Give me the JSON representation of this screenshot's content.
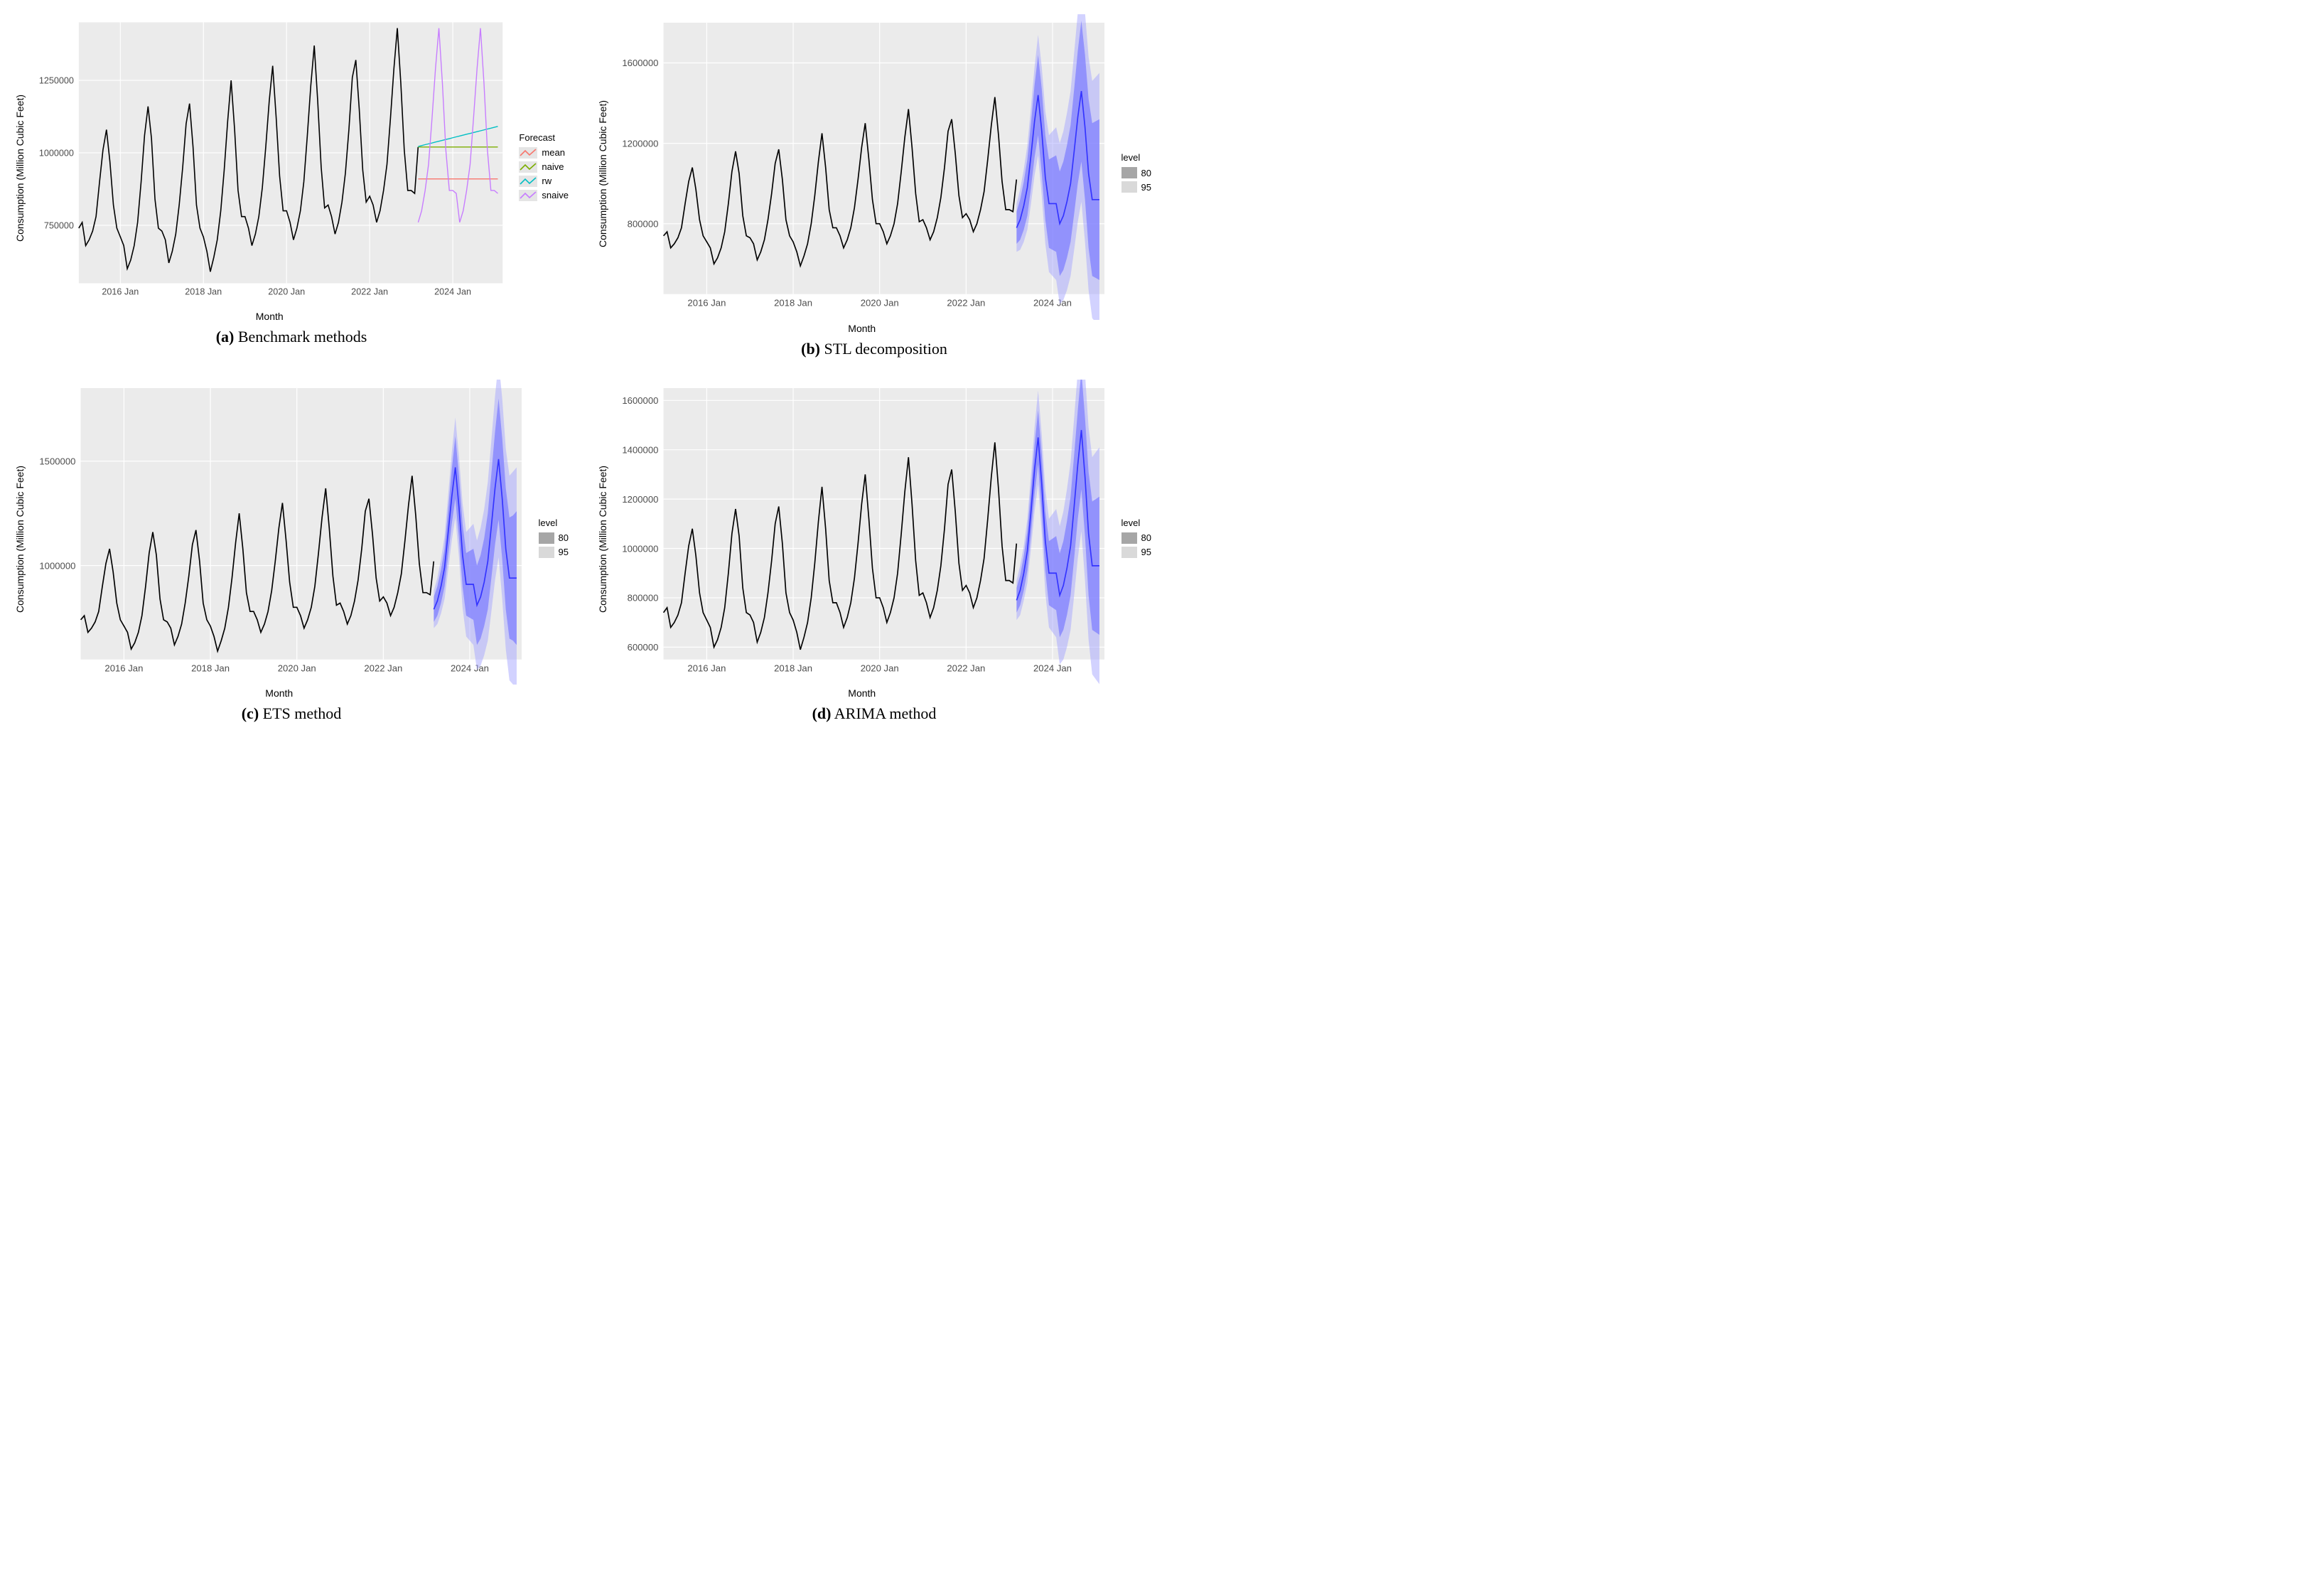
{
  "layout": {
    "rows": 2,
    "cols": 2
  },
  "shared": {
    "xlabel": "Month",
    "ylabel": "Consumption (Million Cubic Feet)",
    "panel_bg": "#ebebeb",
    "grid_color": "#ffffff",
    "grid_width": 1,
    "historical_color": "#000000",
    "historical_width": 1.4,
    "xlim": [
      2015.0,
      2025.2
    ],
    "xticks": [
      2016,
      2018,
      2020,
      2022,
      2024
    ],
    "xtick_labels": [
      "2016 Jan",
      "2018 Jan",
      "2020 Jan",
      "2022 Jan",
      "2024 Jan"
    ],
    "historical_y": [
      740000,
      760000,
      680000,
      700000,
      730000,
      780000,
      900000,
      1010000,
      1080000,
      970000,
      820000,
      740000,
      710000,
      680000,
      600000,
      630000,
      680000,
      760000,
      900000,
      1060000,
      1160000,
      1050000,
      840000,
      740000,
      730000,
      700000,
      620000,
      660000,
      720000,
      820000,
      950000,
      1100000,
      1170000,
      1020000,
      820000,
      740000,
      710000,
      660000,
      590000,
      640000,
      700000,
      800000,
      940000,
      1110000,
      1250000,
      1080000,
      870000,
      780000,
      780000,
      740000,
      680000,
      720000,
      780000,
      880000,
      1020000,
      1180000,
      1300000,
      1120000,
      920000,
      800000,
      800000,
      760000,
      700000,
      740000,
      800000,
      900000,
      1060000,
      1230000,
      1370000,
      1180000,
      950000,
      810000,
      820000,
      780000,
      720000,
      760000,
      830000,
      930000,
      1080000,
      1260000,
      1320000,
      1150000,
      940000,
      830000,
      850000,
      820000,
      760000,
      800000,
      870000,
      960000,
      1120000,
      1290000,
      1430000,
      1240000,
      1010000,
      870000,
      870000,
      860000,
      1020000
    ],
    "historical_x_start": 2015.0,
    "historical_step": 0.0833333
  },
  "panels": {
    "a": {
      "caption_tag": "(a)",
      "caption_text": "Benchmark methods",
      "ylim": [
        550000,
        1450000
      ],
      "yticks": [
        750000,
        1000000,
        1250000
      ],
      "legend": {
        "title": "Forecast",
        "type": "line",
        "items": [
          {
            "label": "mean",
            "color": "#f8766d"
          },
          {
            "label": "naive",
            "color": "#7cae00"
          },
          {
            "label": "rw",
            "color": "#00bfc4"
          },
          {
            "label": "snaive",
            "color": "#c77cff"
          }
        ]
      },
      "forecasts": {
        "x_start": 2023.167,
        "step": 0.0833333,
        "series": {
          "mean": {
            "color": "#f8766d",
            "y": [
              910000,
              910000,
              910000,
              910000,
              910000,
              910000,
              910000,
              910000,
              910000,
              910000,
              910000,
              910000,
              910000,
              910000,
              910000,
              910000,
              910000,
              910000,
              910000,
              910000,
              910000,
              910000,
              910000,
              910000
            ]
          },
          "naive": {
            "color": "#7cae00",
            "y": [
              1020000,
              1020000,
              1020000,
              1020000,
              1020000,
              1020000,
              1020000,
              1020000,
              1020000,
              1020000,
              1020000,
              1020000,
              1020000,
              1020000,
              1020000,
              1020000,
              1020000,
              1020000,
              1020000,
              1020000,
              1020000,
              1020000,
              1020000,
              1020000
            ]
          },
          "rw": {
            "color": "#00bfc4",
            "y": [
              1022000,
              1025000,
              1028000,
              1031000,
              1034000,
              1037000,
              1040000,
              1043000,
              1046000,
              1049000,
              1052000,
              1055000,
              1058000,
              1061000,
              1064000,
              1067000,
              1070000,
              1073000,
              1076000,
              1079000,
              1082000,
              1085000,
              1088000,
              1091000
            ]
          },
          "snaive": {
            "color": "#c77cff",
            "y": [
              760000,
              800000,
              870000,
              960000,
              1120000,
              1290000,
              1430000,
              1240000,
              1010000,
              870000,
              870000,
              860000,
              760000,
              800000,
              870000,
              960000,
              1120000,
              1290000,
              1430000,
              1240000,
              1010000,
              870000,
              870000,
              860000
            ]
          }
        }
      }
    },
    "b": {
      "caption_tag": "(b)",
      "caption_text": "STL decomposition",
      "ylim": [
        450000,
        1800000
      ],
      "yticks": [
        800000,
        1200000,
        1600000
      ],
      "legend": {
        "title": "level",
        "type": "fill",
        "items": [
          {
            "label": "80",
            "color": "#a6a6a6"
          },
          {
            "label": "95",
            "color": "#d9d9d9"
          }
        ]
      },
      "forecast_line": {
        "color": "#3333ff",
        "width": 1.4
      },
      "interval_colors": {
        "c80": "#7b7bffb3",
        "c95": "#a6a6ff80"
      },
      "forecast": {
        "x_start": 2023.167,
        "step": 0.0833333,
        "mean": [
          780000,
          820000,
          890000,
          980000,
          1140000,
          1310000,
          1440000,
          1260000,
          1030000,
          900000,
          900000,
          900000,
          800000,
          840000,
          910000,
          1000000,
          1160000,
          1330000,
          1460000,
          1280000,
          1050000,
          920000,
          920000,
          920000
        ],
        "lo80": [
          700000,
          720000,
          770000,
          840000,
          980000,
          1130000,
          1240000,
          1050000,
          820000,
          680000,
          670000,
          660000,
          540000,
          570000,
          630000,
          710000,
          850000,
          1000000,
          1110000,
          920000,
          680000,
          540000,
          530000,
          520000
        ],
        "hi80": [
          860000,
          920000,
          1010000,
          1120000,
          1300000,
          1490000,
          1640000,
          1470000,
          1240000,
          1120000,
          1130000,
          1140000,
          1060000,
          1110000,
          1190000,
          1290000,
          1470000,
          1660000,
          1810000,
          1640000,
          1420000,
          1300000,
          1310000,
          1320000
        ],
        "lo95": [
          660000,
          670000,
          710000,
          770000,
          900000,
          1040000,
          1140000,
          940000,
          700000,
          560000,
          540000,
          520000,
          400000,
          420000,
          470000,
          540000,
          670000,
          810000,
          910000,
          710000,
          470000,
          330000,
          310000,
          290000
        ],
        "hi95": [
          900000,
          970000,
          1070000,
          1190000,
          1380000,
          1580000,
          1740000,
          1580000,
          1360000,
          1240000,
          1260000,
          1280000,
          1200000,
          1260000,
          1350000,
          1460000,
          1650000,
          1850000,
          2010000,
          1850000,
          1630000,
          1510000,
          1530000,
          1550000
        ]
      }
    },
    "c": {
      "caption_tag": "(c)",
      "caption_text": "ETS method",
      "ylim": [
        550000,
        1850000
      ],
      "yticks": [
        1000000,
        1500000
      ],
      "legend": {
        "title": "level",
        "type": "fill",
        "items": [
          {
            "label": "80",
            "color": "#a6a6a6"
          },
          {
            "label": "95",
            "color": "#d9d9d9"
          }
        ]
      },
      "forecast_line": {
        "color": "#3333ff",
        "width": 1.4
      },
      "interval_colors": {
        "c80": "#7b7bffb3",
        "c95": "#a6a6ff80"
      },
      "forecast": {
        "x_start": 2023.167,
        "step": 0.0833333,
        "mean": [
          790000,
          830000,
          900000,
          990000,
          1160000,
          1330000,
          1470000,
          1280000,
          1050000,
          910000,
          910000,
          910000,
          810000,
          850000,
          920000,
          1020000,
          1190000,
          1370000,
          1510000,
          1320000,
          1080000,
          940000,
          940000,
          940000
        ],
        "lo80": [
          730000,
          760000,
          820000,
          900000,
          1050000,
          1200000,
          1320000,
          1130000,
          900000,
          760000,
          750000,
          740000,
          620000,
          650000,
          710000,
          790000,
          940000,
          1100000,
          1220000,
          1030000,
          790000,
          650000,
          640000,
          620000
        ],
        "hi80": [
          850000,
          900000,
          980000,
          1080000,
          1270000,
          1460000,
          1620000,
          1430000,
          1200000,
          1060000,
          1070000,
          1080000,
          1000000,
          1050000,
          1130000,
          1250000,
          1440000,
          1640000,
          1800000,
          1610000,
          1370000,
          1230000,
          1240000,
          1260000
        ],
        "lo95": [
          700000,
          720000,
          770000,
          840000,
          980000,
          1120000,
          1230000,
          1040000,
          800000,
          660000,
          640000,
          620000,
          500000,
          520000,
          570000,
          640000,
          780000,
          930000,
          1040000,
          840000,
          600000,
          450000,
          430000,
          410000
        ],
        "hi95": [
          880000,
          940000,
          1030000,
          1140000,
          1340000,
          1540000,
          1710000,
          1520000,
          1300000,
          1160000,
          1180000,
          1200000,
          1120000,
          1180000,
          1270000,
          1400000,
          1600000,
          1810000,
          1980000,
          1800000,
          1560000,
          1430000,
          1450000,
          1470000
        ]
      }
    },
    "d": {
      "caption_tag": "(d)",
      "caption_text": "ARIMA method",
      "ylim": [
        550000,
        1650000
      ],
      "yticks": [
        600000,
        800000,
        1000000,
        1200000,
        1400000,
        1600000
      ],
      "legend": {
        "title": "level",
        "type": "fill",
        "items": [
          {
            "label": "80",
            "color": "#a6a6a6"
          },
          {
            "label": "95",
            "color": "#d9d9d9"
          }
        ]
      },
      "forecast_line": {
        "color": "#3333ff",
        "width": 1.4
      },
      "interval_colors": {
        "c80": "#7b7bffb3",
        "c95": "#a6a6ff80"
      },
      "forecast": {
        "x_start": 2023.167,
        "step": 0.0833333,
        "mean": [
          790000,
          830000,
          900000,
          990000,
          1150000,
          1320000,
          1450000,
          1260000,
          1030000,
          900000,
          900000,
          900000,
          810000,
          850000,
          920000,
          1010000,
          1170000,
          1340000,
          1480000,
          1290000,
          1060000,
          930000,
          930000,
          930000
        ],
        "lo80": [
          740000,
          770000,
          830000,
          910000,
          1060000,
          1220000,
          1340000,
          1140000,
          910000,
          770000,
          760000,
          750000,
          640000,
          670000,
          730000,
          810000,
          960000,
          1120000,
          1240000,
          1050000,
          810000,
          670000,
          660000,
          650000
        ],
        "hi80": [
          840000,
          890000,
          970000,
          1070000,
          1240000,
          1420000,
          1560000,
          1380000,
          1150000,
          1030000,
          1040000,
          1050000,
          980000,
          1030000,
          1110000,
          1210000,
          1380000,
          1560000,
          1720000,
          1530000,
          1310000,
          1190000,
          1200000,
          1210000
        ],
        "lo95": [
          710000,
          730000,
          790000,
          860000,
          1000000,
          1150000,
          1260000,
          1060000,
          820000,
          680000,
          660000,
          640000,
          530000,
          550000,
          600000,
          670000,
          810000,
          960000,
          1070000,
          870000,
          630000,
          490000,
          470000,
          450000
        ],
        "hi95": [
          870000,
          930000,
          1010000,
          1120000,
          1300000,
          1490000,
          1640000,
          1460000,
          1240000,
          1120000,
          1140000,
          1160000,
          1090000,
          1150000,
          1240000,
          1350000,
          1530000,
          1720000,
          1890000,
          1710000,
          1490000,
          1370000,
          1390000,
          1410000
        ]
      }
    }
  }
}
